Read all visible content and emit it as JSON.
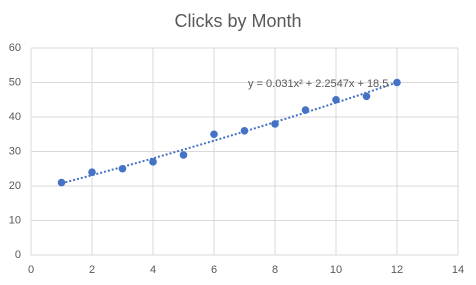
{
  "chart_data": {
    "type": "scatter",
    "title": "Clicks by Month",
    "x": [
      1,
      2,
      3,
      4,
      5,
      6,
      7,
      8,
      9,
      10,
      11,
      12
    ],
    "values": [
      21,
      24,
      25,
      27,
      29,
      35,
      36,
      38,
      42,
      45,
      46,
      50
    ],
    "color": "#4472c4",
    "xlim": [
      0,
      14
    ],
    "xticks": [
      0,
      2,
      4,
      6,
      8,
      10,
      12,
      14
    ],
    "ylim": [
      0,
      60
    ],
    "yticks": [
      0,
      10,
      20,
      30,
      40,
      50,
      60
    ],
    "grid": true,
    "trendline": {
      "type": "polynomial",
      "coefficients": [
        18.5,
        2.2547,
        0.031
      ],
      "color": "#4472c4",
      "label": "y = 0.031x² + 2.2547x + 18.5"
    }
  }
}
